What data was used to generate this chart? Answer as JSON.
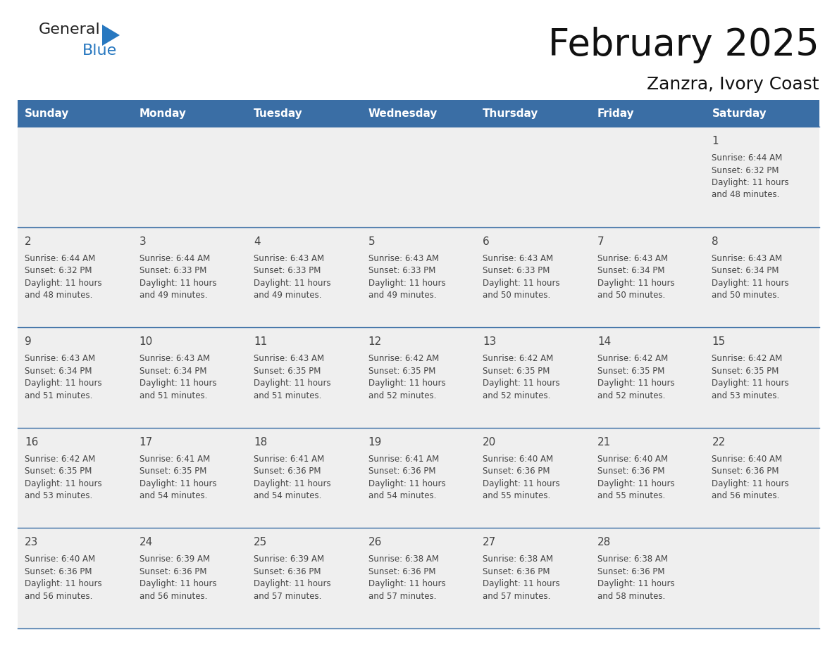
{
  "title": "February 2025",
  "subtitle": "Zanzra, Ivory Coast",
  "header_bg": "#3a6ea5",
  "header_text_color": "#ffffff",
  "days_of_week": [
    "Sunday",
    "Monday",
    "Tuesday",
    "Wednesday",
    "Thursday",
    "Friday",
    "Saturday"
  ],
  "row_bg": "#efefef",
  "cell_text_color": "#444444",
  "day_num_color": "#444444",
  "border_color": "#3a6ea5",
  "calendar_data": [
    [
      {
        "day": null,
        "sunrise": null,
        "sunset": null,
        "daylight": null
      },
      {
        "day": null,
        "sunrise": null,
        "sunset": null,
        "daylight": null
      },
      {
        "day": null,
        "sunrise": null,
        "sunset": null,
        "daylight": null
      },
      {
        "day": null,
        "sunrise": null,
        "sunset": null,
        "daylight": null
      },
      {
        "day": null,
        "sunrise": null,
        "sunset": null,
        "daylight": null
      },
      {
        "day": null,
        "sunrise": null,
        "sunset": null,
        "daylight": null
      },
      {
        "day": 1,
        "sunrise": "6:44 AM",
        "sunset": "6:32 PM",
        "daylight": "11 hours and 48 minutes."
      }
    ],
    [
      {
        "day": 2,
        "sunrise": "6:44 AM",
        "sunset": "6:32 PM",
        "daylight": "11 hours and 48 minutes."
      },
      {
        "day": 3,
        "sunrise": "6:44 AM",
        "sunset": "6:33 PM",
        "daylight": "11 hours and 49 minutes."
      },
      {
        "day": 4,
        "sunrise": "6:43 AM",
        "sunset": "6:33 PM",
        "daylight": "11 hours and 49 minutes."
      },
      {
        "day": 5,
        "sunrise": "6:43 AM",
        "sunset": "6:33 PM",
        "daylight": "11 hours and 49 minutes."
      },
      {
        "day": 6,
        "sunrise": "6:43 AM",
        "sunset": "6:33 PM",
        "daylight": "11 hours and 50 minutes."
      },
      {
        "day": 7,
        "sunrise": "6:43 AM",
        "sunset": "6:34 PM",
        "daylight": "11 hours and 50 minutes."
      },
      {
        "day": 8,
        "sunrise": "6:43 AM",
        "sunset": "6:34 PM",
        "daylight": "11 hours and 50 minutes."
      }
    ],
    [
      {
        "day": 9,
        "sunrise": "6:43 AM",
        "sunset": "6:34 PM",
        "daylight": "11 hours and 51 minutes."
      },
      {
        "day": 10,
        "sunrise": "6:43 AM",
        "sunset": "6:34 PM",
        "daylight": "11 hours and 51 minutes."
      },
      {
        "day": 11,
        "sunrise": "6:43 AM",
        "sunset": "6:35 PM",
        "daylight": "11 hours and 51 minutes."
      },
      {
        "day": 12,
        "sunrise": "6:42 AM",
        "sunset": "6:35 PM",
        "daylight": "11 hours and 52 minutes."
      },
      {
        "day": 13,
        "sunrise": "6:42 AM",
        "sunset": "6:35 PM",
        "daylight": "11 hours and 52 minutes."
      },
      {
        "day": 14,
        "sunrise": "6:42 AM",
        "sunset": "6:35 PM",
        "daylight": "11 hours and 52 minutes."
      },
      {
        "day": 15,
        "sunrise": "6:42 AM",
        "sunset": "6:35 PM",
        "daylight": "11 hours and 53 minutes."
      }
    ],
    [
      {
        "day": 16,
        "sunrise": "6:42 AM",
        "sunset": "6:35 PM",
        "daylight": "11 hours and 53 minutes."
      },
      {
        "day": 17,
        "sunrise": "6:41 AM",
        "sunset": "6:35 PM",
        "daylight": "11 hours and 54 minutes."
      },
      {
        "day": 18,
        "sunrise": "6:41 AM",
        "sunset": "6:36 PM",
        "daylight": "11 hours and 54 minutes."
      },
      {
        "day": 19,
        "sunrise": "6:41 AM",
        "sunset": "6:36 PM",
        "daylight": "11 hours and 54 minutes."
      },
      {
        "day": 20,
        "sunrise": "6:40 AM",
        "sunset": "6:36 PM",
        "daylight": "11 hours and 55 minutes."
      },
      {
        "day": 21,
        "sunrise": "6:40 AM",
        "sunset": "6:36 PM",
        "daylight": "11 hours and 55 minutes."
      },
      {
        "day": 22,
        "sunrise": "6:40 AM",
        "sunset": "6:36 PM",
        "daylight": "11 hours and 56 minutes."
      }
    ],
    [
      {
        "day": 23,
        "sunrise": "6:40 AM",
        "sunset": "6:36 PM",
        "daylight": "11 hours and 56 minutes."
      },
      {
        "day": 24,
        "sunrise": "6:39 AM",
        "sunset": "6:36 PM",
        "daylight": "11 hours and 56 minutes."
      },
      {
        "day": 25,
        "sunrise": "6:39 AM",
        "sunset": "6:36 PM",
        "daylight": "11 hours and 57 minutes."
      },
      {
        "day": 26,
        "sunrise": "6:38 AM",
        "sunset": "6:36 PM",
        "daylight": "11 hours and 57 minutes."
      },
      {
        "day": 27,
        "sunrise": "6:38 AM",
        "sunset": "6:36 PM",
        "daylight": "11 hours and 57 minutes."
      },
      {
        "day": 28,
        "sunrise": "6:38 AM",
        "sunset": "6:36 PM",
        "daylight": "11 hours and 58 minutes."
      },
      {
        "day": null,
        "sunrise": null,
        "sunset": null,
        "daylight": null
      }
    ]
  ],
  "logo_text_general": "General",
  "logo_text_blue": "Blue",
  "logo_color_general": "#222222",
  "logo_color_blue": "#2878c0",
  "logo_triangle_color": "#2878c0",
  "figwidth": 11.88,
  "figheight": 9.18,
  "dpi": 100
}
